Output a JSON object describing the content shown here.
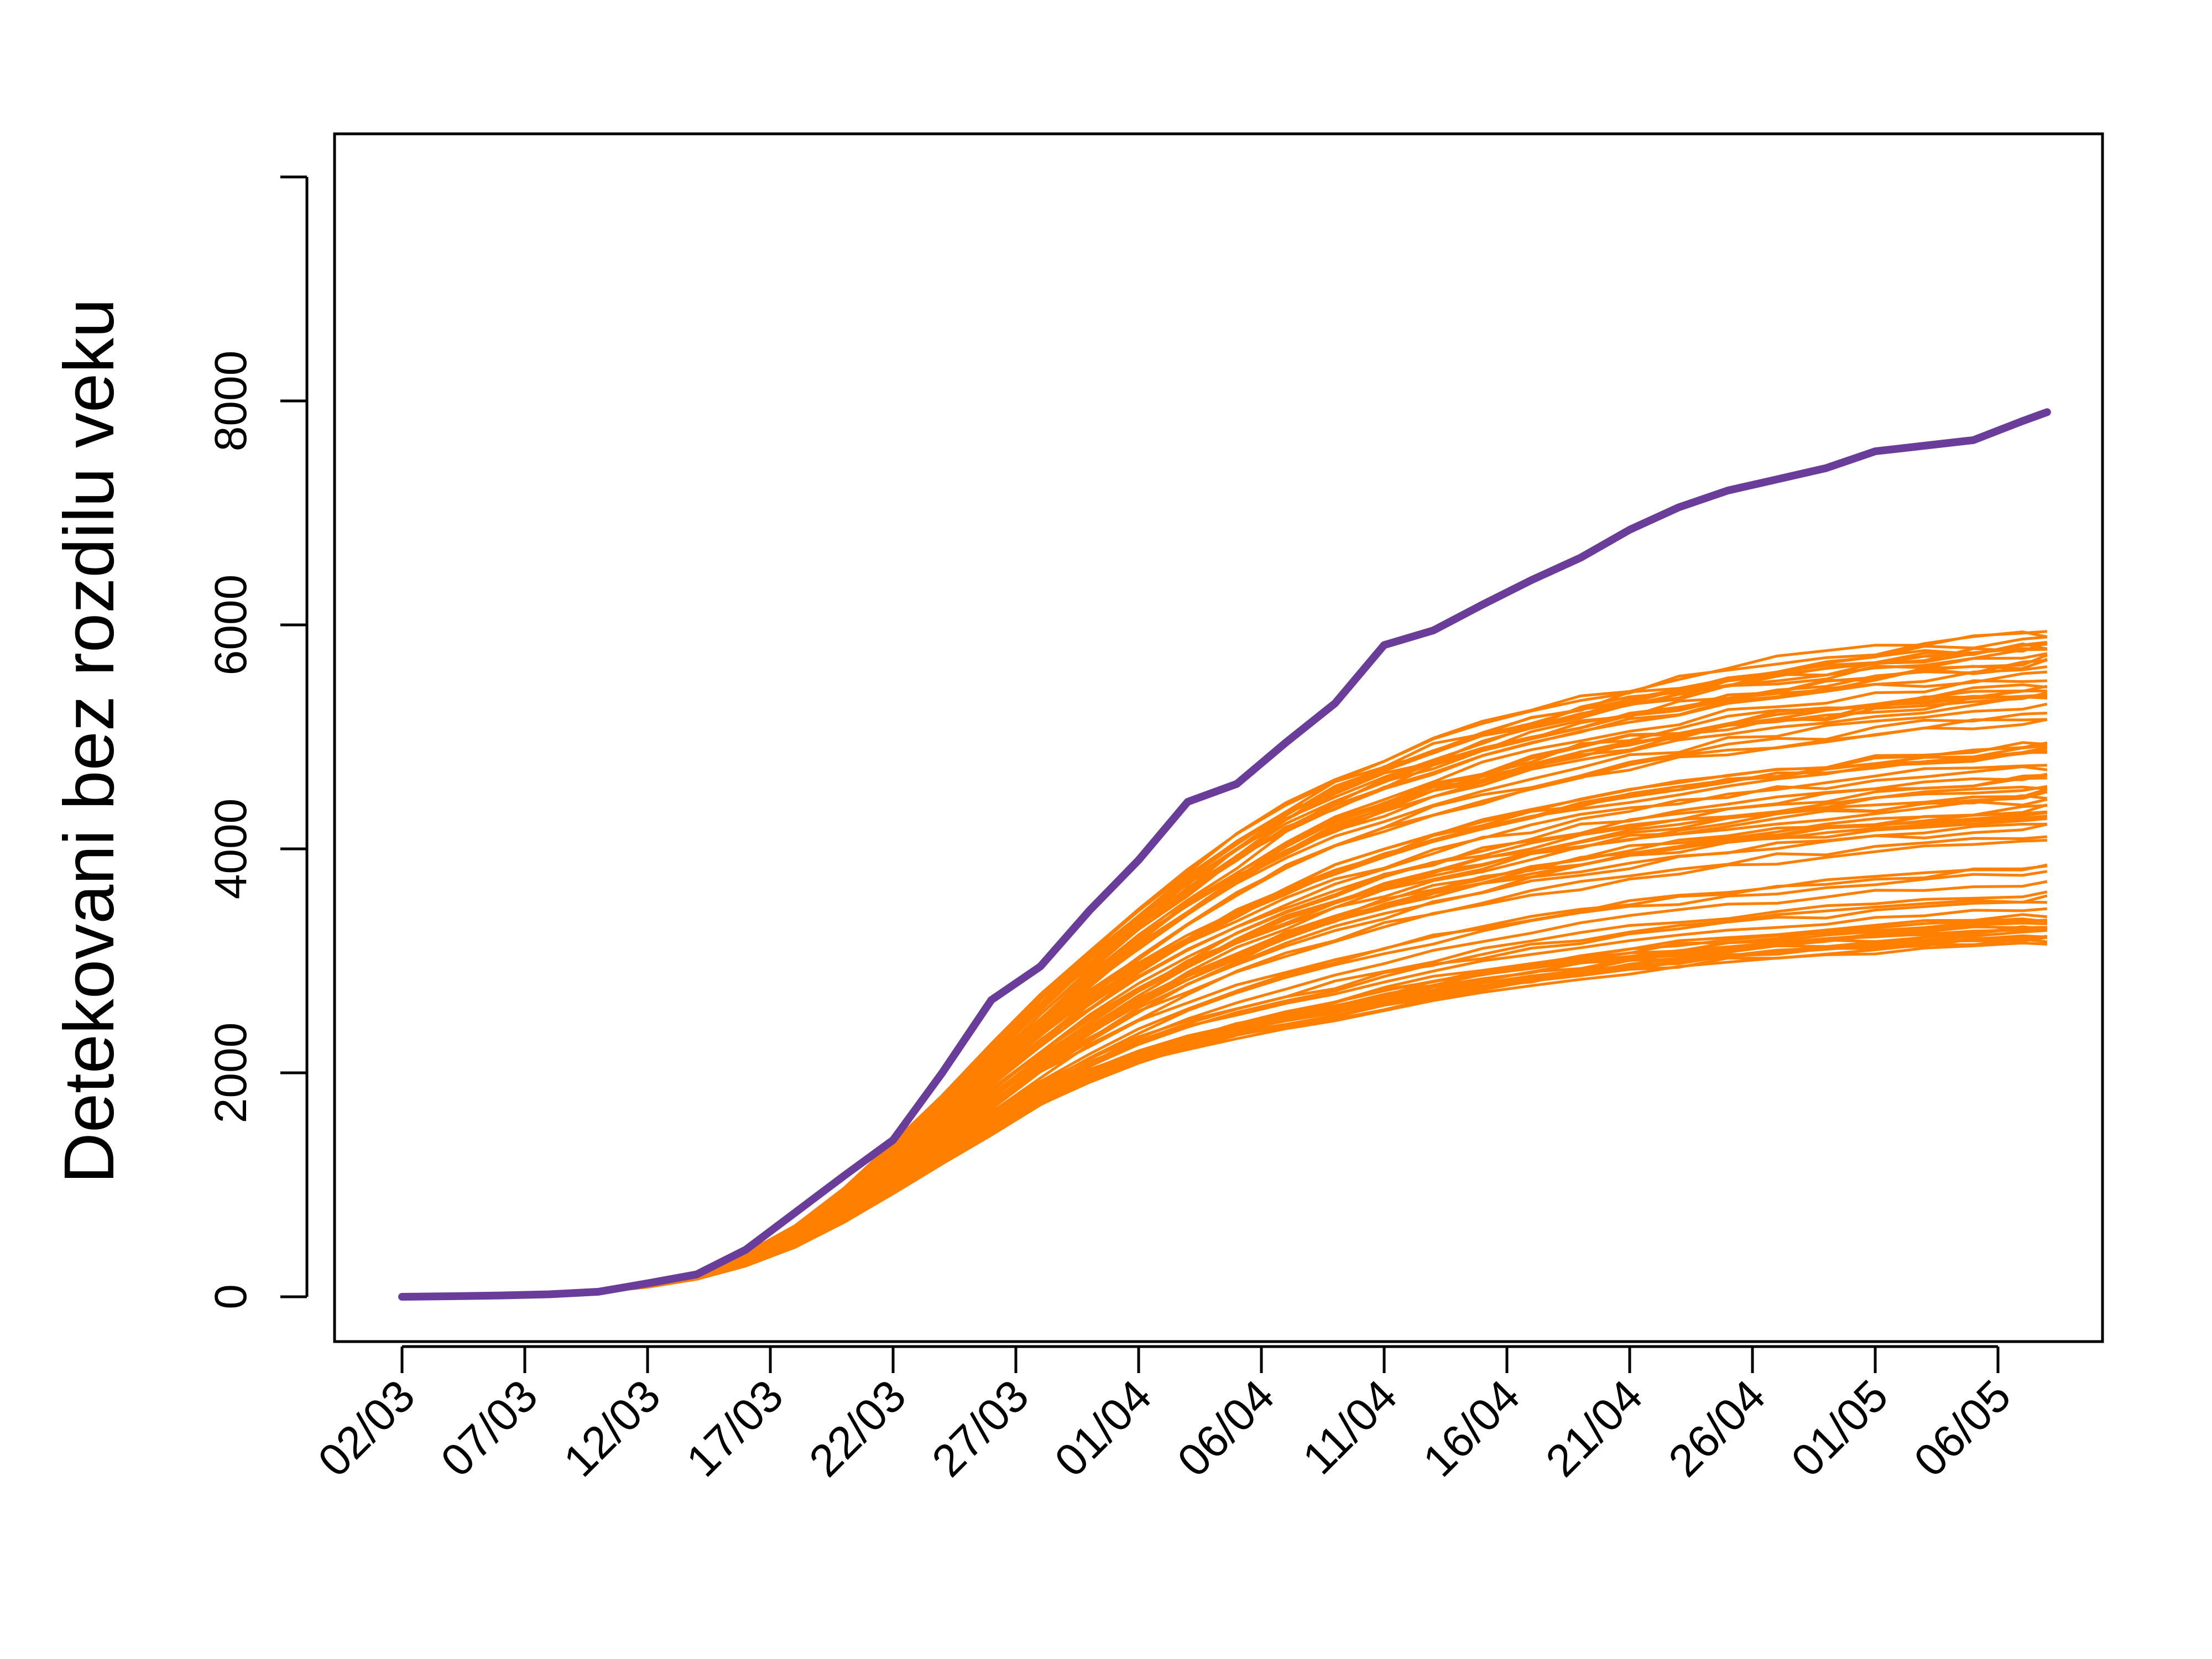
{
  "chart_data": {
    "type": "line",
    "title": "",
    "xlabel": "",
    "ylabel": "Detekovani bez rozdilu veku",
    "x_tick_labels": [
      "02/03",
      "07/03",
      "12/03",
      "17/03",
      "22/03",
      "27/03",
      "01/04",
      "06/04",
      "11/04",
      "16/04",
      "21/04",
      "26/04",
      "01/05",
      "06/05"
    ],
    "y_tick_labels": [
      "0",
      "2000",
      "4000",
      "6000",
      "8000"
    ],
    "xlim": [
      0,
      67
    ],
    "ylim": [
      0,
      10000
    ],
    "grid": false,
    "legend": "none",
    "colors": {
      "observed": "#6a3d9a",
      "simulations": "#ff7f00",
      "axis": "#000000"
    },
    "observed": {
      "x": [
        0,
        2,
        4,
        6,
        8,
        10,
        12,
        14,
        16,
        18,
        20,
        22,
        24,
        26,
        28,
        30,
        32,
        34,
        36,
        38,
        40,
        42,
        44,
        46,
        48,
        50,
        52,
        54,
        56,
        58,
        60,
        62,
        64,
        66,
        67
      ],
      "values": [
        0,
        5,
        12,
        22,
        45,
        120,
        200,
        420,
        750,
        1080,
        1400,
        2000,
        2650,
        2950,
        3450,
        3900,
        4420,
        4580,
        4950,
        5300,
        5820,
        5950,
        6180,
        6400,
        6600,
        6850,
        7050,
        7200,
        7300,
        7400,
        7550,
        7600,
        7650,
        7820,
        7900
      ]
    },
    "simulations": {
      "count": 80,
      "final_value_range": [
        3150,
        5950
      ],
      "x": [
        0,
        2,
        4,
        6,
        8,
        10,
        12,
        14,
        16,
        18,
        20,
        22,
        24,
        26,
        28,
        30,
        32,
        34,
        36,
        38,
        40,
        42,
        44,
        46,
        48,
        50,
        52,
        54,
        56,
        58,
        60,
        62,
        64,
        66,
        67
      ],
      "median": [
        0,
        4,
        10,
        22,
        45,
        95,
        175,
        310,
        500,
        760,
        1060,
        1380,
        1720,
        2040,
        2330,
        2590,
        2820,
        3020,
        3200,
        3350,
        3480,
        3600,
        3700,
        3790,
        3870,
        3940,
        4000,
        4060,
        4110,
        4150,
        4190,
        4230,
        4260,
        4290,
        4300
      ]
    }
  }
}
